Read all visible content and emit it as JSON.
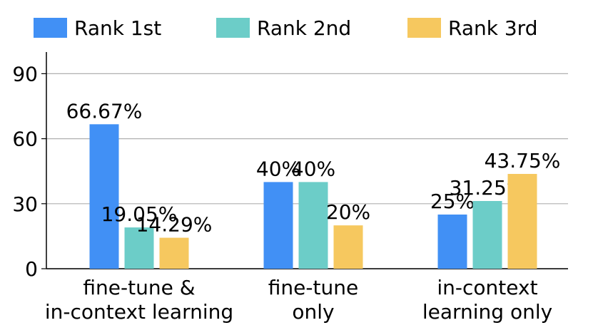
{
  "chart_data": {
    "type": "bar",
    "categories": [
      "fine-tune &\nin-context learning",
      "fine-tune\nonly",
      "in-context\nlearning only"
    ],
    "series": [
      {
        "name": "Rank 1st",
        "color": "#4190f5",
        "values": [
          66.67,
          40,
          25
        ],
        "value_labels": [
          "66.67%",
          "40%",
          "25%"
        ]
      },
      {
        "name": "Rank 2nd",
        "color": "#6ccdc8",
        "values": [
          19.05,
          40,
          31.25
        ],
        "value_labels": [
          "19.05%",
          "40%",
          "31.25%"
        ]
      },
      {
        "name": "Rank 3rd",
        "color": "#f6c85f",
        "values": [
          14.29,
          20,
          43.75
        ],
        "value_labels": [
          "14.29%",
          "20%",
          "43.75%"
        ]
      }
    ],
    "ylim": [
      0,
      100
    ],
    "yticks": [
      0,
      30,
      60,
      90
    ],
    "grid": true
  }
}
